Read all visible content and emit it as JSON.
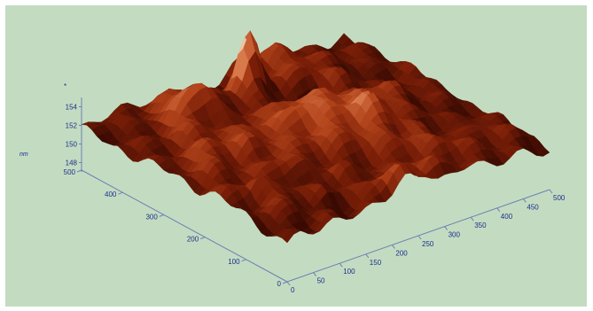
{
  "chart_data": {
    "type": "surface",
    "title": "",
    "z_unit": "nm",
    "z_axis_marker": "*",
    "x_ticks": [
      "0",
      "50",
      "100",
      "150",
      "200",
      "250",
      "300",
      "350",
      "400",
      "450",
      "500"
    ],
    "y_ticks": [
      "0",
      "100",
      "200",
      "300",
      "400",
      "500"
    ],
    "z_ticks": [
      "148",
      "150",
      "152",
      "154"
    ],
    "x_range": [
      0,
      500
    ],
    "y_range": [
      0,
      500
    ],
    "z_range": [
      147,
      155
    ],
    "grid": false,
    "colormap": [
      "#3a0a02",
      "#7a1e07",
      "#b2431a",
      "#d97a4c",
      "#f4d0b0"
    ],
    "background": "#c3dcc1"
  }
}
